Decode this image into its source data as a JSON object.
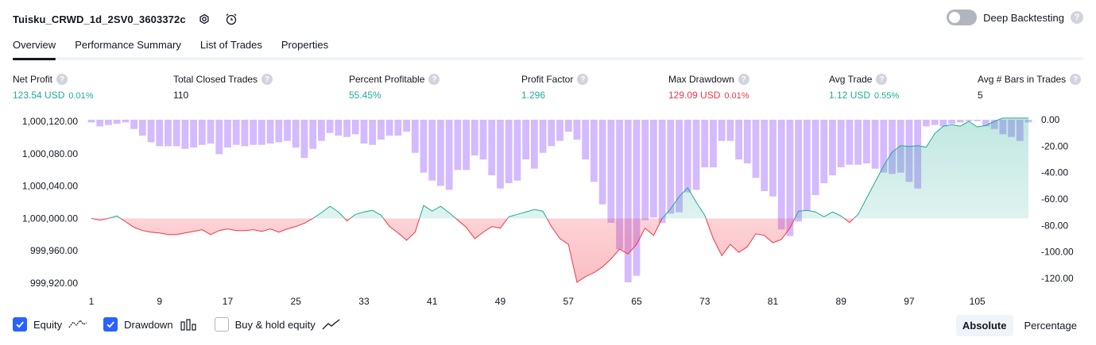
{
  "strategy": {
    "title": "Tuisku_CRWD_1d_2SV0_3603372c"
  },
  "deep_backtesting": {
    "label": "Deep Backtesting",
    "help": "?"
  },
  "tabs": [
    {
      "label": "Overview"
    },
    {
      "label": "Performance Summary"
    },
    {
      "label": "List of Trades"
    },
    {
      "label": "Properties"
    }
  ],
  "stats": [
    {
      "label": "Net Profit",
      "value": "123.54 USD",
      "pct": "0.01%",
      "color": "#22ab94"
    },
    {
      "label": "Total Closed Trades",
      "value": "110",
      "pct": "",
      "color": "#131722"
    },
    {
      "label": "Percent Profitable",
      "value": "55.45%",
      "pct": "",
      "color": "#22ab94"
    },
    {
      "label": "Profit Factor",
      "value": "1.296",
      "pct": "",
      "color": "#22ab94"
    },
    {
      "label": "Max Drawdown",
      "value": "129.09 USD",
      "pct": "0.01%",
      "color": "#f23645"
    },
    {
      "label": "Avg Trade",
      "value": "1.12 USD",
      "pct": "0.55%",
      "color": "#22ab94"
    },
    {
      "label": "Avg # Bars in Trades",
      "value": "5",
      "pct": "",
      "color": "#131722"
    }
  ],
  "chart_data": {
    "type": "area",
    "x_tick_labels": [
      "1",
      "9",
      "17",
      "25",
      "33",
      "41",
      "49",
      "57",
      "65",
      "73",
      "81",
      "89",
      "97",
      "105"
    ],
    "left_axis": {
      "ticks": [
        "1,000,120.00",
        "1,000,080.00",
        "1,000,040.00",
        "1,000,000.00",
        "999,960.00",
        "999,920.00"
      ],
      "ylim": [
        999920,
        1000120
      ]
    },
    "right_axis": {
      "ticks": [
        "0.00",
        "-20.00",
        "-40.00",
        "-60.00",
        "-80.00",
        "-100.00",
        "-120.00"
      ],
      "ylim": [
        -120,
        0
      ]
    },
    "series": [
      {
        "name": "Equity",
        "color": "#22ab94",
        "negative_color": "#f23645",
        "baseline": 1000000,
        "x": [
          1,
          2,
          3,
          4,
          5,
          6,
          7,
          8,
          9,
          10,
          11,
          12,
          13,
          14,
          15,
          16,
          17,
          18,
          19,
          20,
          21,
          22,
          23,
          24,
          25,
          26,
          27,
          28,
          29,
          30,
          31,
          32,
          33,
          34,
          35,
          36,
          37,
          38,
          39,
          40,
          41,
          42,
          43,
          44,
          45,
          46,
          47,
          48,
          49,
          50,
          51,
          52,
          53,
          54,
          55,
          56,
          57,
          58,
          59,
          60,
          61,
          62,
          63,
          64,
          65,
          66,
          67,
          68,
          69,
          70,
          71,
          72,
          73,
          74,
          75,
          76,
          77,
          78,
          79,
          80,
          81,
          82,
          83,
          84,
          85,
          86,
          87,
          88,
          89,
          90,
          91,
          92,
          93,
          94,
          95,
          96,
          97,
          98,
          99,
          100,
          101,
          102,
          103,
          104,
          105,
          106,
          107,
          108,
          109,
          110,
          111
        ],
        "values": [
          1000000,
          999998,
          1000000,
          1000003,
          999996,
          999989,
          999985,
          999983,
          999982,
          999980,
          999980,
          999982,
          999984,
          999986,
          999980,
          999985,
          999987,
          999985,
          999985,
          999986,
          999984,
          999987,
          999983,
          999987,
          999990,
          999994,
          1000000,
          1000007,
          1000015,
          1000008,
          999997,
          1000005,
          1000008,
          1000010,
          1000004,
          999990,
          999982,
          999973,
          999983,
          1000016,
          1000009,
          1000015,
          1000007,
          999998,
          999989,
          999975,
          999983,
          999990,
          999988,
          1000002,
          1000005,
          1000008,
          1000011,
          1000009,
          999990,
          999975,
          999968,
          999921,
          999928,
          999933,
          999940,
          999950,
          999962,
          999956,
          999968,
          999988,
          999979,
          1000000,
          1000012,
          1000027,
          1000038,
          1000020,
          1000004,
          999975,
          999954,
          999968,
          999958,
          999965,
          999981,
          999979,
          999970,
          999974,
          999988,
          1000009,
          1000010,
          1000008,
          1000002,
          1000008,
          1000003,
          999995,
          1000005,
          1000025,
          1000045,
          1000065,
          1000082,
          1000090,
          1000089,
          1000090,
          1000088,
          1000105,
          1000114,
          1000116,
          1000114,
          1000120,
          1000113,
          1000115,
          1000120,
          1000124,
          1000124,
          1000124,
          1000124
        ]
      },
      {
        "name": "Drawdown",
        "type": "bar",
        "color": "#c5a3ff",
        "values": [
          -2,
          -5,
          -4,
          -3,
          -2,
          -7,
          -12,
          -17,
          -20,
          -20,
          -20,
          -22,
          -21,
          -19,
          -18,
          -26,
          -21,
          -19,
          -20,
          -19,
          -19,
          -18,
          -17,
          -16,
          -21,
          -29,
          -22,
          -16,
          -10,
          -12,
          -13,
          -11,
          -18,
          -19,
          -15,
          -12,
          -12,
          -9,
          -25,
          -40,
          -46,
          -50,
          -53,
          -38,
          -38,
          -27,
          -30,
          -42,
          -52,
          -48,
          -46,
          -30,
          -37,
          -25,
          -20,
          -16,
          -9,
          -15,
          -30,
          -47,
          -64,
          -78,
          -98,
          -123,
          -118,
          -76,
          -74,
          -78,
          -71,
          -70,
          -55,
          -53,
          -36,
          -36,
          -16,
          -16,
          -30,
          -33,
          -44,
          -54,
          -58,
          -83,
          -88,
          -77,
          -69,
          -57,
          -48,
          -42,
          -36,
          -34,
          -34,
          -33,
          -37,
          -40,
          -41,
          -40,
          -47,
          -52,
          -5,
          -4,
          -5,
          -3,
          -2,
          -1,
          -1,
          -5,
          -7,
          -11,
          -13,
          -16,
          -2
        ]
      }
    ]
  },
  "legend": [
    {
      "label": "Equity",
      "checked": true
    },
    {
      "label": "Drawdown",
      "checked": true
    },
    {
      "label": "Buy & hold equity",
      "checked": false
    }
  ],
  "modes": [
    {
      "label": "Absolute",
      "active": true
    },
    {
      "label": "Percentage",
      "active": false
    }
  ]
}
